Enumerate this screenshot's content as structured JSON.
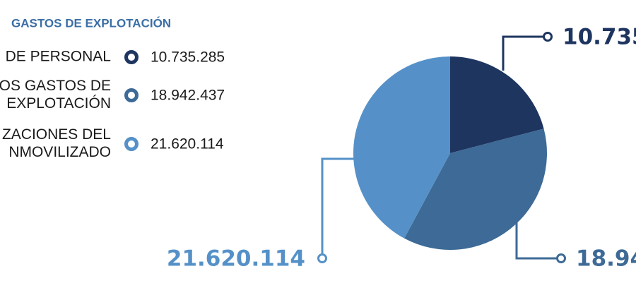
{
  "chart_data": {
    "type": "pie",
    "title": "GASTOS DE EXPLOTACIÓN",
    "categories": [
      [
        "DE PERSONAL"
      ],
      [
        "OS GASTOS DE",
        "EXPLOTACIÓN"
      ],
      [
        "ZACIONES DEL",
        "NMOVILIZADO"
      ]
    ],
    "values": [
      10735285,
      18942437,
      21620114
    ],
    "value_labels": [
      "10.735.285",
      "18.942.437",
      "21.620.114"
    ],
    "colors": [
      "#1e3560",
      "#3d6a96",
      "#5591c8"
    ]
  }
}
